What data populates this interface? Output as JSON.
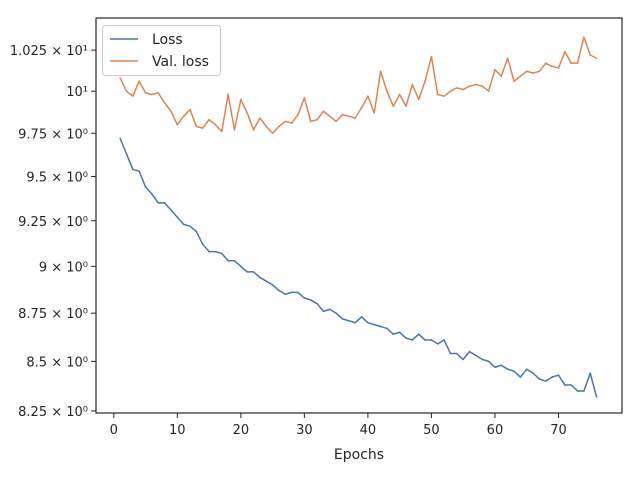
{
  "chart_data": {
    "type": "line",
    "title": "",
    "xlabel": "Epochs",
    "ylabel": "",
    "xlim": [
      -2.8,
      80.0
    ],
    "ylim": [
      8.24,
      10.45
    ],
    "yscale": "log",
    "grid": false,
    "legend_position": "top-left",
    "x_ticks": [
      0,
      10,
      20,
      30,
      40,
      50,
      60,
      70
    ],
    "x_tick_labels": [
      "0",
      "10",
      "20",
      "30",
      "40",
      "50",
      "60",
      "70"
    ],
    "y_ticks": [
      8.25,
      8.5,
      8.75,
      9.0,
      9.25,
      9.5,
      9.75,
      10.0,
      10.25
    ],
    "y_tick_labels": [
      "8.25 × 10⁰",
      "8.5 × 10⁰",
      "8.75 × 10⁰",
      "9 × 10⁰",
      "9.25 × 10⁰",
      "9.5 × 10⁰",
      "9.75 × 10⁰",
      "10¹",
      "1.025 × 10¹"
    ],
    "x": [
      1,
      2,
      3,
      4,
      5,
      6,
      7,
      8,
      9,
      10,
      11,
      12,
      13,
      14,
      15,
      16,
      17,
      18,
      19,
      20,
      21,
      22,
      23,
      24,
      25,
      26,
      27,
      28,
      29,
      30,
      31,
      32,
      33,
      34,
      35,
      36,
      37,
      38,
      39,
      40,
      41,
      42,
      43,
      44,
      45,
      46,
      47,
      48,
      49,
      50,
      51,
      52,
      53,
      54,
      55,
      56,
      57,
      58,
      59,
      60,
      61,
      62,
      63,
      64,
      65,
      66,
      67,
      68,
      69,
      70,
      71,
      72,
      73,
      74,
      75,
      76
    ],
    "series": [
      {
        "name": "Loss",
        "color": "#4c72b0",
        "values": [
          9.72,
          9.63,
          9.54,
          9.53,
          9.44,
          9.4,
          9.35,
          9.35,
          9.31,
          9.27,
          9.23,
          9.22,
          9.19,
          9.12,
          9.08,
          9.08,
          9.07,
          9.03,
          9.03,
          9.0,
          8.97,
          8.97,
          8.94,
          8.92,
          8.9,
          8.87,
          8.85,
          8.86,
          8.86,
          8.83,
          8.82,
          8.8,
          8.76,
          8.77,
          8.75,
          8.72,
          8.71,
          8.7,
          8.73,
          8.7,
          8.69,
          8.68,
          8.67,
          8.64,
          8.65,
          8.62,
          8.61,
          8.64,
          8.61,
          8.61,
          8.59,
          8.61,
          8.54,
          8.54,
          8.51,
          8.55,
          8.53,
          8.51,
          8.5,
          8.47,
          8.48,
          8.46,
          8.45,
          8.42,
          8.46,
          8.44,
          8.41,
          8.4,
          8.42,
          8.43,
          8.38,
          8.38,
          8.35,
          8.35,
          8.44,
          8.32
        ]
      },
      {
        "name": "Val. loss",
        "color": "#dd8452",
        "values": [
          10.08,
          10.0,
          9.97,
          10.06,
          9.99,
          9.98,
          9.99,
          9.93,
          9.88,
          9.8,
          9.85,
          9.89,
          9.79,
          9.78,
          9.83,
          9.8,
          9.76,
          9.98,
          9.77,
          9.95,
          9.87,
          9.77,
          9.84,
          9.79,
          9.75,
          9.79,
          9.82,
          9.81,
          9.86,
          9.96,
          9.82,
          9.83,
          9.88,
          9.85,
          9.82,
          9.86,
          9.85,
          9.84,
          9.9,
          9.97,
          9.87,
          10.12,
          10.0,
          9.91,
          9.98,
          9.91,
          10.04,
          9.95,
          10.06,
          10.21,
          9.98,
          9.97,
          10.0,
          10.02,
          10.01,
          10.03,
          10.04,
          10.03,
          10.0,
          10.13,
          10.09,
          10.2,
          10.06,
          10.09,
          10.12,
          10.11,
          10.12,
          10.17,
          10.15,
          10.14,
          10.24,
          10.17,
          10.17,
          10.33,
          10.22,
          10.2
        ]
      }
    ]
  }
}
